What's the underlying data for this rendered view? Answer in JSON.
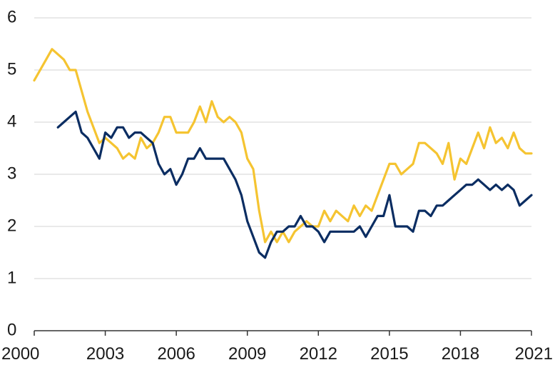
{
  "chart_data": {
    "type": "line",
    "title": "",
    "xlabel": "",
    "ylabel": "",
    "xlim": [
      2000,
      2021
    ],
    "ylim": [
      0,
      6
    ],
    "y_ticks": [
      0,
      1,
      2,
      3,
      4,
      5,
      6
    ],
    "x_ticks": [
      2000,
      2003,
      2006,
      2009,
      2012,
      2015,
      2018,
      2021
    ],
    "x_tick_labels": [
      "2000",
      "2003",
      "2006",
      "2009",
      "2012",
      "2015",
      "2018",
      "2021"
    ],
    "y_tick_labels": [
      "0",
      "1",
      "2",
      "3",
      "4",
      "5",
      "6"
    ],
    "grid": "horizontal",
    "legend": "none",
    "series": [
      {
        "color": "#F5C431",
        "x": [
          2000.0,
          2000.25,
          2000.5,
          2000.75,
          2001.0,
          2001.25,
          2001.5,
          2001.75,
          2002.0,
          2002.25,
          2002.5,
          2002.75,
          2003.0,
          2003.25,
          2003.5,
          2003.75,
          2004.0,
          2004.25,
          2004.5,
          2004.75,
          2005.0,
          2005.25,
          2005.5,
          2005.75,
          2006.0,
          2006.25,
          2006.5,
          2006.75,
          2007.0,
          2007.25,
          2007.5,
          2007.75,
          2008.0,
          2008.25,
          2008.5,
          2008.75,
          2009.0,
          2009.25,
          2009.5,
          2009.75,
          2010.0,
          2010.25,
          2010.5,
          2010.75,
          2011.0,
          2011.25,
          2011.5,
          2011.75,
          2012.0,
          2012.25,
          2012.5,
          2012.75,
          2013.0,
          2013.25,
          2013.5,
          2013.75,
          2014.0,
          2014.25,
          2014.5,
          2014.75,
          2015.0,
          2015.25,
          2015.5,
          2015.75,
          2016.0,
          2016.25,
          2016.5,
          2016.75,
          2017.0,
          2017.25,
          2017.5,
          2017.75,
          2018.0,
          2018.25,
          2018.5,
          2018.75,
          2019.0,
          2019.25,
          2019.5,
          2019.75,
          2020.0,
          2020.25,
          2020.5,
          2020.75,
          2021.0
        ],
        "values": [
          4.8,
          5.0,
          5.2,
          5.4,
          5.3,
          5.2,
          5.0,
          5.0,
          4.6,
          4.2,
          3.9,
          3.6,
          3.7,
          3.6,
          3.5,
          3.3,
          3.4,
          3.3,
          3.7,
          3.5,
          3.6,
          3.8,
          4.1,
          4.1,
          3.8,
          3.8,
          3.8,
          4.0,
          4.3,
          4.0,
          4.4,
          4.1,
          4.0,
          4.1,
          4.0,
          3.8,
          3.3,
          3.1,
          2.3,
          1.7,
          1.9,
          1.7,
          1.9,
          1.7,
          1.9,
          2.0,
          2.1,
          2.0,
          2.0,
          2.3,
          2.1,
          2.3,
          2.2,
          2.1,
          2.4,
          2.2,
          2.4,
          2.3,
          2.6,
          2.9,
          3.2,
          3.2,
          3.0,
          3.1,
          3.2,
          3.6,
          3.6,
          3.5,
          3.4,
          3.2,
          3.6,
          2.9,
          3.3,
          3.2,
          3.5,
          3.8,
          3.5,
          3.9,
          3.6,
          3.7,
          3.5,
          3.8,
          3.5,
          3.4,
          3.4
        ]
      },
      {
        "color": "#0B2D62",
        "x": [
          2001.0,
          2001.25,
          2001.5,
          2001.75,
          2002.0,
          2002.25,
          2002.5,
          2002.75,
          2003.0,
          2003.25,
          2003.5,
          2003.75,
          2004.0,
          2004.25,
          2004.5,
          2004.75,
          2005.0,
          2005.25,
          2005.5,
          2005.75,
          2006.0,
          2006.25,
          2006.5,
          2006.75,
          2007.0,
          2007.25,
          2007.5,
          2007.75,
          2008.0,
          2008.25,
          2008.5,
          2008.75,
          2009.0,
          2009.25,
          2009.5,
          2009.75,
          2010.0,
          2010.25,
          2010.5,
          2010.75,
          2011.0,
          2011.25,
          2011.5,
          2011.75,
          2012.0,
          2012.25,
          2012.5,
          2012.75,
          2013.0,
          2013.25,
          2013.5,
          2013.75,
          2014.0,
          2014.25,
          2014.5,
          2014.75,
          2015.0,
          2015.25,
          2015.5,
          2015.75,
          2016.0,
          2016.25,
          2016.5,
          2016.75,
          2017.0,
          2017.25,
          2017.5,
          2017.75,
          2018.0,
          2018.25,
          2018.5,
          2018.75,
          2019.0,
          2019.25,
          2019.5,
          2019.75,
          2020.0,
          2020.25,
          2020.5,
          2020.75,
          2021.0
        ],
        "values": [
          3.9,
          4.0,
          4.1,
          4.2,
          3.8,
          3.7,
          3.5,
          3.3,
          3.8,
          3.7,
          3.9,
          3.9,
          3.7,
          3.8,
          3.8,
          3.7,
          3.6,
          3.2,
          3.0,
          3.1,
          2.8,
          3.0,
          3.3,
          3.3,
          3.5,
          3.3,
          3.3,
          3.3,
          3.3,
          3.1,
          2.9,
          2.6,
          2.1,
          1.8,
          1.5,
          1.4,
          1.7,
          1.9,
          1.9,
          2.0,
          2.0,
          2.2,
          2.0,
          2.0,
          1.9,
          1.7,
          1.9,
          1.9,
          1.9,
          1.9,
          1.9,
          2.0,
          1.8,
          2.0,
          2.2,
          2.2,
          2.6,
          2.0,
          2.0,
          2.0,
          1.9,
          2.3,
          2.3,
          2.2,
          2.4,
          2.4,
          2.5,
          2.6,
          2.7,
          2.8,
          2.8,
          2.9,
          2.8,
          2.7,
          2.8,
          2.7,
          2.8,
          2.7,
          2.4,
          2.5,
          2.6
        ]
      }
    ]
  }
}
